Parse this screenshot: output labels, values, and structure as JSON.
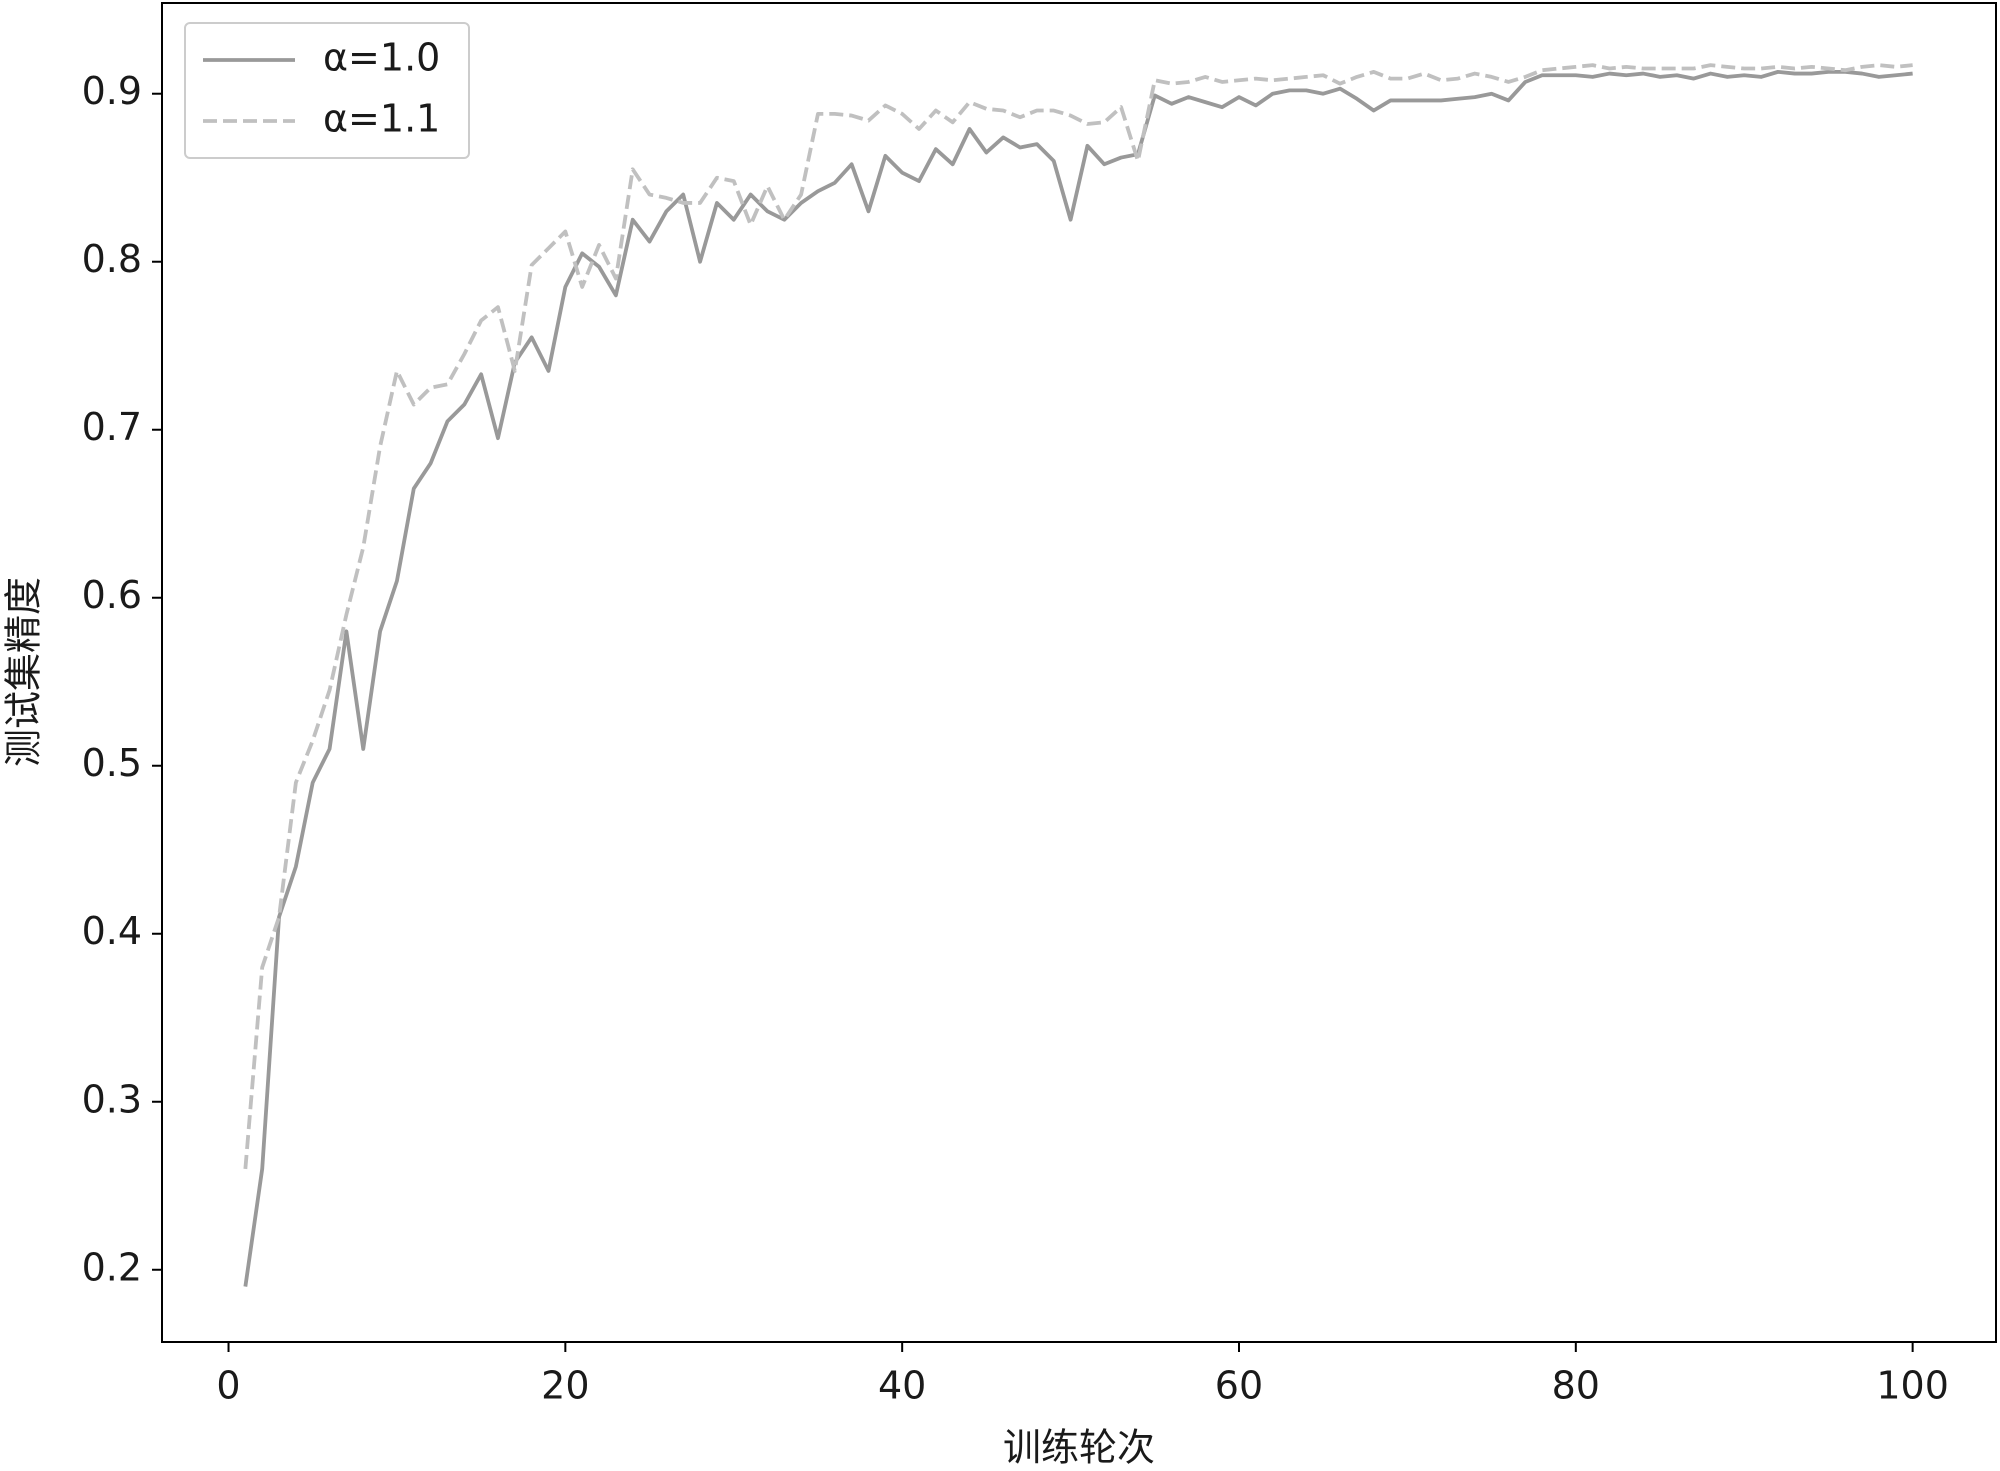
{
  "chart_data": {
    "type": "line",
    "xlabel": "训练轮次",
    "ylabel": "测试集精度",
    "x": [
      1,
      2,
      3,
      4,
      5,
      6,
      7,
      8,
      9,
      10,
      11,
      12,
      13,
      14,
      15,
      16,
      17,
      18,
      19,
      20,
      21,
      22,
      23,
      24,
      25,
      26,
      27,
      28,
      29,
      30,
      31,
      32,
      33,
      34,
      35,
      36,
      37,
      38,
      39,
      40,
      41,
      42,
      43,
      44,
      45,
      46,
      47,
      48,
      49,
      50,
      51,
      52,
      53,
      54,
      55,
      56,
      57,
      58,
      59,
      60,
      61,
      62,
      63,
      64,
      65,
      66,
      67,
      68,
      69,
      70,
      71,
      72,
      73,
      74,
      75,
      76,
      77,
      78,
      79,
      80,
      81,
      82,
      83,
      84,
      85,
      86,
      87,
      88,
      89,
      90,
      91,
      92,
      93,
      94,
      95,
      96,
      97,
      98,
      99,
      100
    ],
    "series": [
      {
        "name": "α=1.0",
        "color": "#999999",
        "linestyle": "solid",
        "values": [
          0.19,
          0.26,
          0.41,
          0.44,
          0.49,
          0.51,
          0.58,
          0.51,
          0.58,
          0.61,
          0.665,
          0.68,
          0.705,
          0.715,
          0.733,
          0.695,
          0.74,
          0.755,
          0.735,
          0.785,
          0.805,
          0.797,
          0.78,
          0.825,
          0.812,
          0.83,
          0.84,
          0.8,
          0.835,
          0.825,
          0.84,
          0.83,
          0.825,
          0.835,
          0.842,
          0.847,
          0.858,
          0.83,
          0.863,
          0.853,
          0.848,
          0.867,
          0.858,
          0.879,
          0.865,
          0.874,
          0.868,
          0.87,
          0.86,
          0.825,
          0.869,
          0.858,
          0.862,
          0.864,
          0.899,
          0.894,
          0.898,
          0.895,
          0.892,
          0.898,
          0.893,
          0.9,
          0.902,
          0.902,
          0.9,
          0.903,
          0.897,
          0.89,
          0.896,
          0.896,
          0.896,
          0.896,
          0.897,
          0.898,
          0.9,
          0.896,
          0.907,
          0.911,
          0.911,
          0.911,
          0.91,
          0.912,
          0.911,
          0.912,
          0.91,
          0.911,
          0.909,
          0.912,
          0.91,
          0.911,
          0.91,
          0.913,
          0.912,
          0.912,
          0.913,
          0.913,
          0.912,
          0.91,
          0.911,
          0.912
        ]
      },
      {
        "name": "α=1.1",
        "color": "#c0c0c0",
        "linestyle": "dashed",
        "values": [
          0.26,
          0.38,
          0.41,
          0.49,
          0.515,
          0.545,
          0.59,
          0.63,
          0.69,
          0.735,
          0.715,
          0.725,
          0.727,
          0.745,
          0.765,
          0.773,
          0.735,
          0.798,
          0.808,
          0.818,
          0.785,
          0.81,
          0.79,
          0.855,
          0.84,
          0.838,
          0.835,
          0.835,
          0.85,
          0.848,
          0.822,
          0.845,
          0.825,
          0.84,
          0.888,
          0.888,
          0.887,
          0.884,
          0.893,
          0.888,
          0.879,
          0.89,
          0.883,
          0.895,
          0.891,
          0.89,
          0.886,
          0.89,
          0.89,
          0.887,
          0.882,
          0.883,
          0.892,
          0.86,
          0.908,
          0.906,
          0.907,
          0.91,
          0.907,
          0.908,
          0.909,
          0.908,
          0.909,
          0.91,
          0.911,
          0.906,
          0.91,
          0.913,
          0.909,
          0.909,
          0.912,
          0.908,
          0.909,
          0.912,
          0.91,
          0.907,
          0.91,
          0.914,
          0.915,
          0.916,
          0.917,
          0.915,
          0.916,
          0.915,
          0.915,
          0.915,
          0.915,
          0.917,
          0.916,
          0.915,
          0.915,
          0.916,
          0.915,
          0.916,
          0.915,
          0.914,
          0.916,
          0.917,
          0.916,
          0.917
        ]
      }
    ],
    "xlim": [
      -3.95,
      104.95
    ],
    "ylim": [
      0.157,
      0.954
    ],
    "xticks": [
      0,
      20,
      40,
      60,
      80,
      100
    ],
    "yticks": [
      0.2,
      0.3,
      0.4,
      0.5,
      0.6,
      0.7,
      0.8,
      0.9
    ],
    "grid": false,
    "legend": "upper left"
  }
}
